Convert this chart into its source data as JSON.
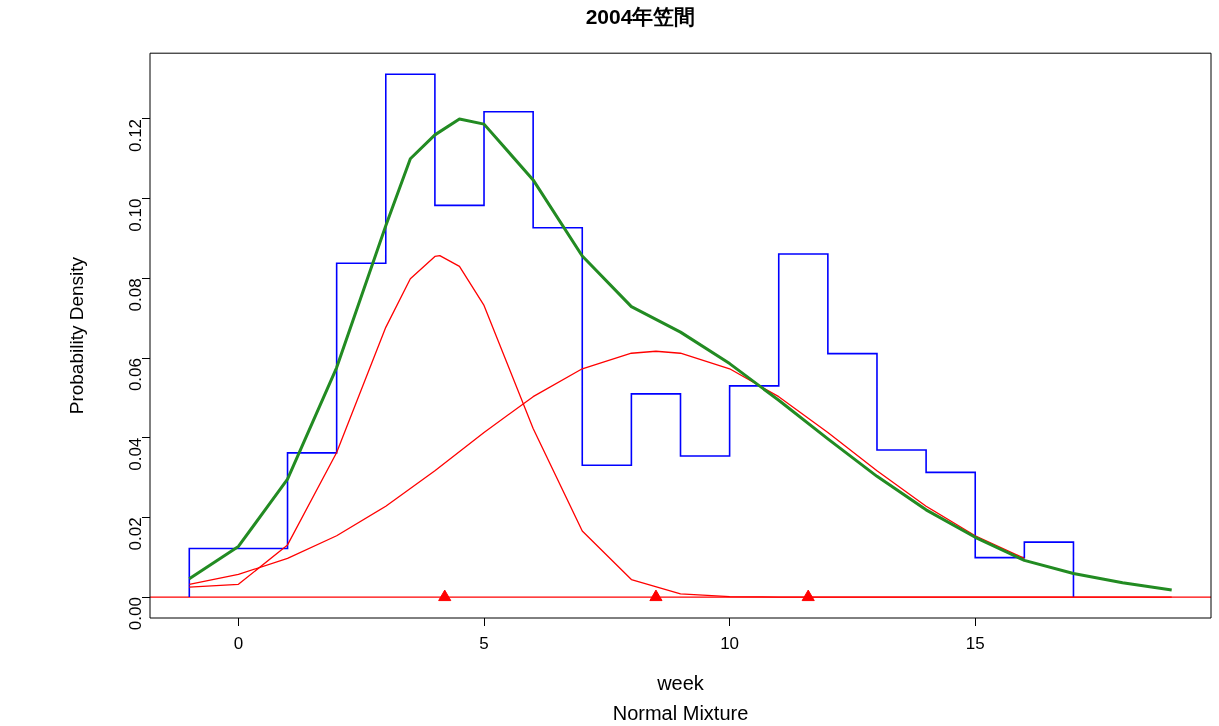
{
  "chart_data": {
    "type": "histogram",
    "title": "2004年笠間",
    "xlabel": "week",
    "ylabel": "Probability Density",
    "annotations": [
      "Normal Mixture"
    ],
    "bins": [
      -1,
      1,
      2,
      3,
      4,
      5,
      6,
      7,
      8,
      9,
      10,
      11,
      12,
      13,
      14,
      15,
      16,
      17
    ],
    "values": [
      0.0122,
      0.0362,
      0.0838,
      0.1312,
      0.0983,
      0.1218,
      0.0927,
      0.0331,
      0.051,
      0.0354,
      0.053,
      0.0861,
      0.0611,
      0.0369,
      0.0313,
      0.0099,
      0.0138
    ],
    "color": "#0000ff",
    "series": [
      {
        "type": "line",
        "color": "#228b22",
        "x": [
          -1,
          0,
          1,
          2,
          3,
          3.5,
          4,
          4.5,
          5,
          6,
          7,
          8,
          9,
          10,
          11,
          12,
          13,
          14,
          15,
          16,
          17,
          18,
          19
        ],
        "values": [
          0.0046,
          0.0127,
          0.0296,
          0.0576,
          0.0932,
          0.11,
          0.116,
          0.12,
          0.1187,
          0.1047,
          0.0856,
          0.0729,
          0.0665,
          0.0586,
          0.0494,
          0.0397,
          0.0303,
          0.0219,
          0.015,
          0.0092,
          0.0059,
          0.0036,
          0.0018
        ]
      },
      {
        "type": "line",
        "color": "#ff0000",
        "x": [
          -1,
          0,
          1,
          2,
          3,
          3.5,
          4,
          4.1,
          4.5,
          5,
          6,
          7,
          8,
          9,
          10,
          11,
          19
        ],
        "values": [
          0.0025,
          0.0032,
          0.0131,
          0.0363,
          0.0677,
          0.0799,
          0.0855,
          0.0857,
          0.083,
          0.0732,
          0.0423,
          0.0166,
          0.0044,
          0.0008,
          0.0001,
          0,
          0
        ]
      },
      {
        "type": "line",
        "color": "#ff0000",
        "x": [
          -1,
          0,
          1,
          2,
          3,
          4,
          5,
          6,
          7,
          8,
          8.5,
          9,
          10,
          11,
          12,
          13,
          14,
          15,
          16
        ],
        "values": [
          0.0032,
          0.0057,
          0.0097,
          0.0154,
          0.0228,
          0.0317,
          0.0413,
          0.0503,
          0.0573,
          0.0612,
          0.0617,
          0.0612,
          0.0573,
          0.0503,
          0.0413,
          0.0317,
          0.0228,
          0.0154,
          0.0097
        ]
      },
      {
        "type": "scatter",
        "color": "#ff0000",
        "marker": "triangle",
        "x": [
          4.2,
          8.5,
          11.6
        ],
        "values": [
          0,
          0,
          0
        ]
      }
    ],
    "ref_lines": [
      {
        "axis": "y",
        "value": 0,
        "color": "#ff0000"
      }
    ],
    "xlim": [
      -1.8,
      19.8
    ],
    "ylim": [
      -0.00525,
      0.1365
    ],
    "xticks": [
      0,
      5,
      10,
      15
    ],
    "yticks": [
      {
        "value": 0,
        "label": "0.00"
      },
      {
        "value": 0.02,
        "label": "0.02"
      },
      {
        "value": 0.04,
        "label": "0.04"
      },
      {
        "value": 0.06,
        "label": "0.06"
      },
      {
        "value": 0.08,
        "label": "0.08"
      },
      {
        "value": 0.1,
        "label": "0.10"
      },
      {
        "value": 0.12,
        "label": "0.12"
      }
    ],
    "grid": false
  }
}
